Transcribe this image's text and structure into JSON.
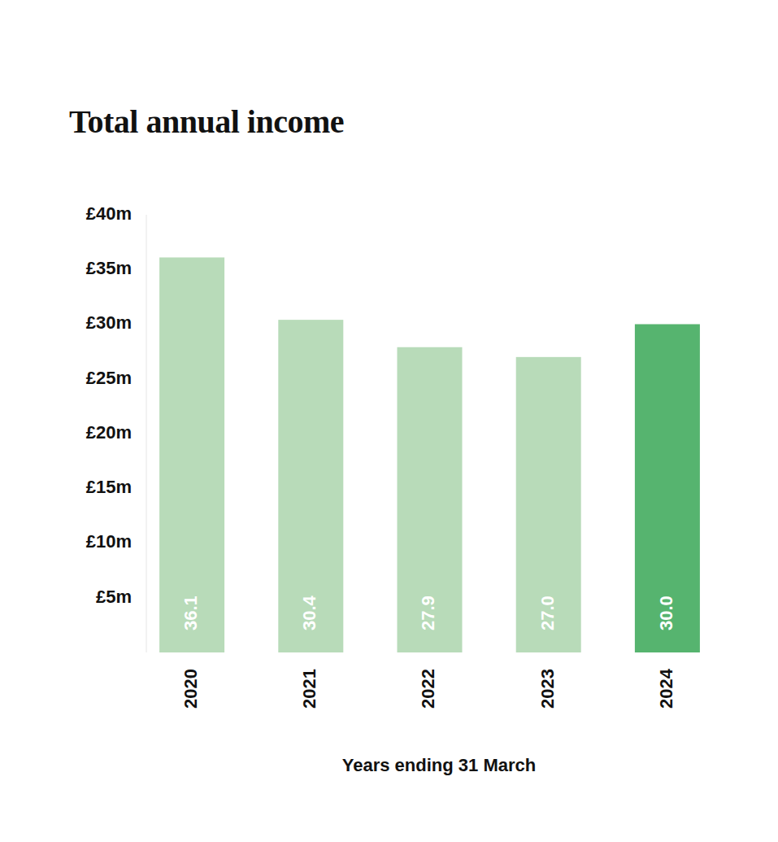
{
  "chart_data": {
    "type": "bar",
    "title": "Total annual income",
    "x_label": "Years ending 31 March",
    "categories": [
      "2020",
      "2021",
      "2022",
      "2023",
      "2024"
    ],
    "values": [
      36.1,
      30.4,
      27.9,
      27.0,
      30.0
    ],
    "value_labels": [
      "36.1",
      "30.4",
      "27.9",
      "27.0",
      "30.0"
    ],
    "colors": [
      "#b8dbb9",
      "#b8dbb9",
      "#b8dbb9",
      "#b8dbb9",
      "#56b46f"
    ],
    "ylim": [
      0,
      40
    ],
    "yticks": [
      {
        "value": 5,
        "label": "£5m"
      },
      {
        "value": 10,
        "label": "£10m"
      },
      {
        "value": 15,
        "label": "£15m"
      },
      {
        "value": 20,
        "label": "£20m"
      },
      {
        "value": 25,
        "label": "£25m"
      },
      {
        "value": 30,
        "label": "£30m"
      },
      {
        "value": 35,
        "label": "£35m"
      },
      {
        "value": 40,
        "label": "£40m"
      }
    ],
    "grid": false,
    "data_labels": true
  }
}
